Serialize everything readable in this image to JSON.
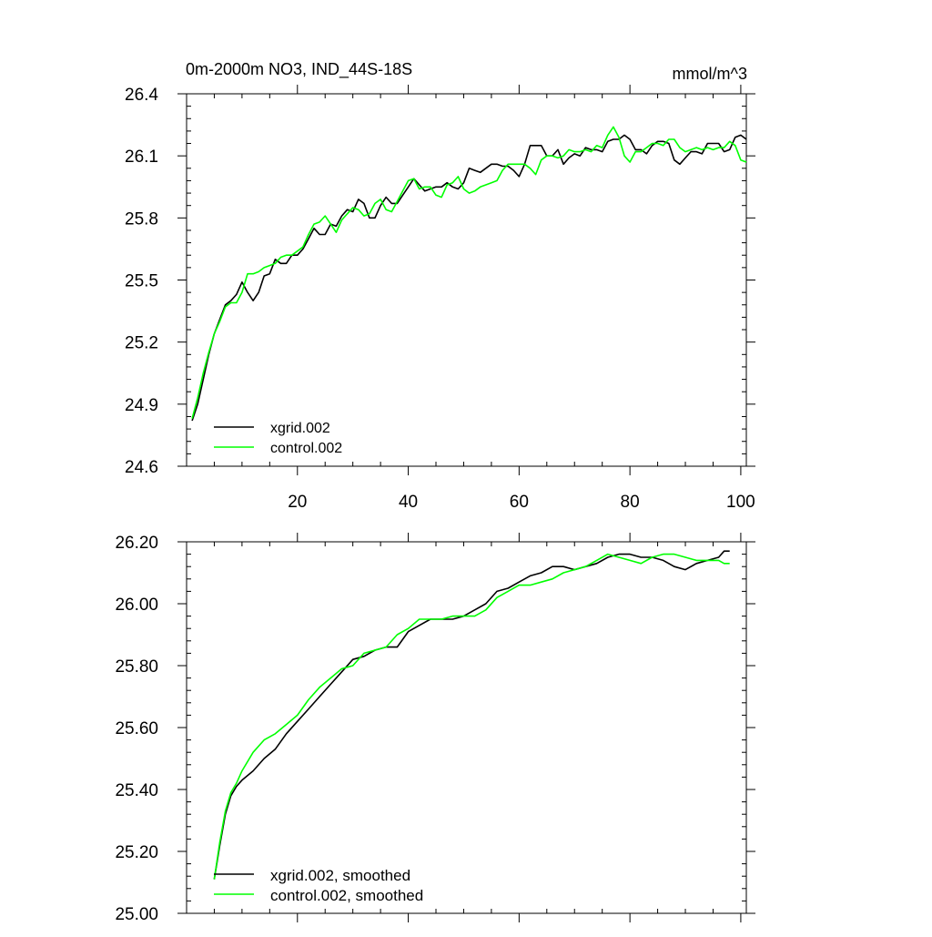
{
  "chart_data": [
    {
      "type": "line",
      "title": "0m-2000m NO3, IND_44S-18S",
      "units_label": "mmol/m^3",
      "xlabel": "",
      "ylabel": "",
      "xlim": [
        0,
        101
      ],
      "ylim": [
        24.6,
        26.4
      ],
      "x_ticks": [
        20,
        40,
        60,
        80,
        100
      ],
      "y_ticks": [
        24.6,
        24.9,
        25.2,
        25.5,
        25.8,
        26.1,
        26.4
      ],
      "y_tick_labels": [
        "24.6",
        "24.9",
        "25.2",
        "25.5",
        "25.8",
        "26.1",
        "26.4"
      ],
      "x_tick_labels": [
        "20",
        "40",
        "60",
        "80",
        "100"
      ],
      "legend_position": "bottom-left",
      "series": [
        {
          "name": "xgrid.002",
          "color": "#000000",
          "x": [
            1,
            2,
            3,
            4,
            5,
            6,
            7,
            8,
            9,
            10,
            11,
            12,
            13,
            14,
            15,
            16,
            17,
            18,
            19,
            20,
            21,
            22,
            23,
            24,
            25,
            26,
            27,
            28,
            29,
            30,
            31,
            32,
            33,
            34,
            35,
            36,
            37,
            38,
            39,
            40,
            41,
            42,
            43,
            44,
            45,
            46,
            47,
            48,
            49,
            50,
            51,
            52,
            53,
            54,
            55,
            56,
            57,
            58,
            59,
            60,
            61,
            62,
            63,
            64,
            65,
            66,
            67,
            68,
            69,
            70,
            71,
            72,
            73,
            74,
            75,
            76,
            77,
            78,
            79,
            80,
            81,
            82,
            83,
            84,
            85,
            86,
            87,
            88,
            89,
            90,
            91,
            92,
            93,
            94,
            95,
            96,
            97,
            98,
            99,
            100,
            101
          ],
          "values": [
            24.82,
            24.9,
            25.02,
            25.14,
            25.24,
            25.31,
            25.38,
            25.4,
            25.43,
            25.49,
            25.44,
            25.4,
            25.44,
            25.52,
            25.53,
            25.6,
            25.58,
            25.58,
            25.62,
            25.62,
            25.65,
            25.7,
            25.75,
            25.72,
            25.72,
            25.77,
            25.76,
            25.81,
            25.84,
            25.83,
            25.89,
            25.87,
            25.8,
            25.8,
            25.86,
            25.9,
            25.87,
            25.87,
            25.91,
            25.95,
            25.99,
            25.96,
            25.93,
            25.94,
            25.95,
            25.95,
            25.97,
            25.95,
            25.94,
            25.97,
            26.04,
            26.03,
            26.02,
            26.04,
            26.06,
            26.06,
            26.05,
            26.05,
            26.03,
            26.0,
            26.06,
            26.15,
            26.15,
            26.15,
            26.1,
            26.1,
            26.13,
            26.06,
            26.09,
            26.11,
            26.1,
            26.14,
            26.13,
            26.13,
            26.12,
            26.17,
            26.18,
            26.18,
            26.2,
            26.18,
            26.13,
            26.13,
            26.11,
            26.15,
            26.17,
            26.17,
            26.16,
            26.08,
            26.06,
            26.09,
            26.12,
            26.12,
            26.11,
            26.16,
            26.16,
            26.16,
            26.12,
            26.13,
            26.19,
            26.2,
            26.18
          ]
        },
        {
          "name": "control.002",
          "color": "#00ff00",
          "x": [
            1,
            2,
            3,
            4,
            5,
            6,
            7,
            8,
            9,
            10,
            11,
            12,
            13,
            14,
            15,
            16,
            17,
            18,
            19,
            20,
            21,
            22,
            23,
            24,
            25,
            26,
            27,
            28,
            29,
            30,
            31,
            32,
            33,
            34,
            35,
            36,
            37,
            38,
            39,
            40,
            41,
            42,
            43,
            44,
            45,
            46,
            47,
            48,
            49,
            50,
            51,
            52,
            53,
            54,
            55,
            56,
            57,
            58,
            59,
            60,
            61,
            62,
            63,
            64,
            65,
            66,
            67,
            68,
            69,
            70,
            71,
            72,
            73,
            74,
            75,
            76,
            77,
            78,
            79,
            80,
            81,
            82,
            83,
            84,
            85,
            86,
            87,
            88,
            89,
            90,
            91,
            92,
            93,
            94,
            95,
            96,
            97,
            98,
            99,
            100,
            101
          ],
          "values": [
            24.83,
            24.93,
            25.05,
            25.15,
            25.24,
            25.3,
            25.37,
            25.39,
            25.39,
            25.44,
            25.53,
            25.53,
            25.54,
            25.56,
            25.57,
            25.58,
            25.61,
            25.62,
            25.62,
            25.64,
            25.66,
            25.72,
            25.77,
            25.78,
            25.81,
            25.77,
            25.73,
            25.79,
            25.82,
            25.85,
            25.84,
            25.81,
            25.82,
            25.87,
            25.89,
            25.84,
            25.83,
            25.88,
            25.93,
            25.98,
            25.99,
            25.94,
            25.95,
            25.95,
            25.91,
            25.9,
            25.96,
            25.97,
            26.0,
            25.94,
            25.92,
            25.93,
            25.95,
            25.96,
            25.97,
            25.98,
            26.03,
            26.06,
            26.06,
            26.06,
            26.06,
            26.04,
            26.01,
            26.08,
            26.1,
            26.1,
            26.09,
            26.1,
            26.13,
            26.12,
            26.12,
            26.13,
            26.12,
            26.15,
            26.14,
            26.2,
            26.24,
            26.19,
            26.1,
            26.07,
            26.12,
            26.12,
            26.14,
            26.16,
            26.16,
            26.15,
            26.18,
            26.18,
            26.14,
            26.12,
            26.13,
            26.14,
            26.13,
            26.14,
            26.13,
            26.14,
            26.14,
            26.17,
            26.15,
            26.08,
            26.07
          ]
        }
      ]
    },
    {
      "type": "line",
      "title": "",
      "xlabel": "",
      "ylabel": "",
      "xlim": [
        0,
        101
      ],
      "ylim": [
        25.0,
        26.2
      ],
      "x_ticks": [
        20,
        40,
        60,
        80,
        100
      ],
      "x_tick_labels": [],
      "y_ticks": [
        25.0,
        25.2,
        25.4,
        25.6,
        25.8,
        26.0,
        26.2
      ],
      "y_tick_labels": [
        "25.00",
        "25.20",
        "25.40",
        "25.60",
        "25.80",
        "26.00",
        "26.20"
      ],
      "legend_position": "bottom-left",
      "series": [
        {
          "name": "xgrid.002, smoothed",
          "color": "#000000",
          "x": [
            5,
            6,
            7,
            8,
            9,
            10,
            12,
            14,
            16,
            18,
            20,
            22,
            24,
            26,
            28,
            30,
            32,
            34,
            36,
            38,
            40,
            42,
            44,
            46,
            48,
            50,
            52,
            54,
            56,
            58,
            60,
            62,
            64,
            66,
            68,
            70,
            72,
            74,
            76,
            78,
            80,
            82,
            84,
            86,
            88,
            90,
            92,
            94,
            96,
            97,
            98
          ],
          "values": [
            25.11,
            25.22,
            25.32,
            25.38,
            25.41,
            25.43,
            25.46,
            25.5,
            25.53,
            25.58,
            25.62,
            25.66,
            25.7,
            25.74,
            25.78,
            25.82,
            25.83,
            25.85,
            25.86,
            25.86,
            25.91,
            25.93,
            25.95,
            25.95,
            25.95,
            25.96,
            25.98,
            26.0,
            26.04,
            26.05,
            26.07,
            26.09,
            26.1,
            26.12,
            26.12,
            26.11,
            26.12,
            26.13,
            26.15,
            26.16,
            26.16,
            26.15,
            26.15,
            26.14,
            26.12,
            26.11,
            26.13,
            26.14,
            26.15,
            26.17,
            26.17
          ]
        },
        {
          "name": "control.002, smoothed",
          "color": "#00ff00",
          "x": [
            5,
            6,
            7,
            8,
            9,
            10,
            12,
            14,
            16,
            18,
            20,
            22,
            24,
            26,
            28,
            30,
            32,
            34,
            36,
            38,
            40,
            42,
            44,
            46,
            48,
            50,
            52,
            54,
            56,
            58,
            60,
            62,
            64,
            66,
            68,
            70,
            72,
            74,
            76,
            78,
            80,
            82,
            84,
            86,
            88,
            90,
            92,
            94,
            96,
            97,
            98
          ],
          "values": [
            25.11,
            25.23,
            25.33,
            25.39,
            25.42,
            25.46,
            25.52,
            25.56,
            25.58,
            25.61,
            25.64,
            25.69,
            25.73,
            25.76,
            25.79,
            25.8,
            25.84,
            25.85,
            25.86,
            25.9,
            25.92,
            25.95,
            25.95,
            25.95,
            25.96,
            25.96,
            25.96,
            25.98,
            26.02,
            26.04,
            26.06,
            26.06,
            26.07,
            26.08,
            26.1,
            26.11,
            26.12,
            26.14,
            26.16,
            26.15,
            26.14,
            26.13,
            26.15,
            26.16,
            26.16,
            26.15,
            26.14,
            26.14,
            26.14,
            26.13,
            26.13
          ]
        }
      ]
    }
  ]
}
